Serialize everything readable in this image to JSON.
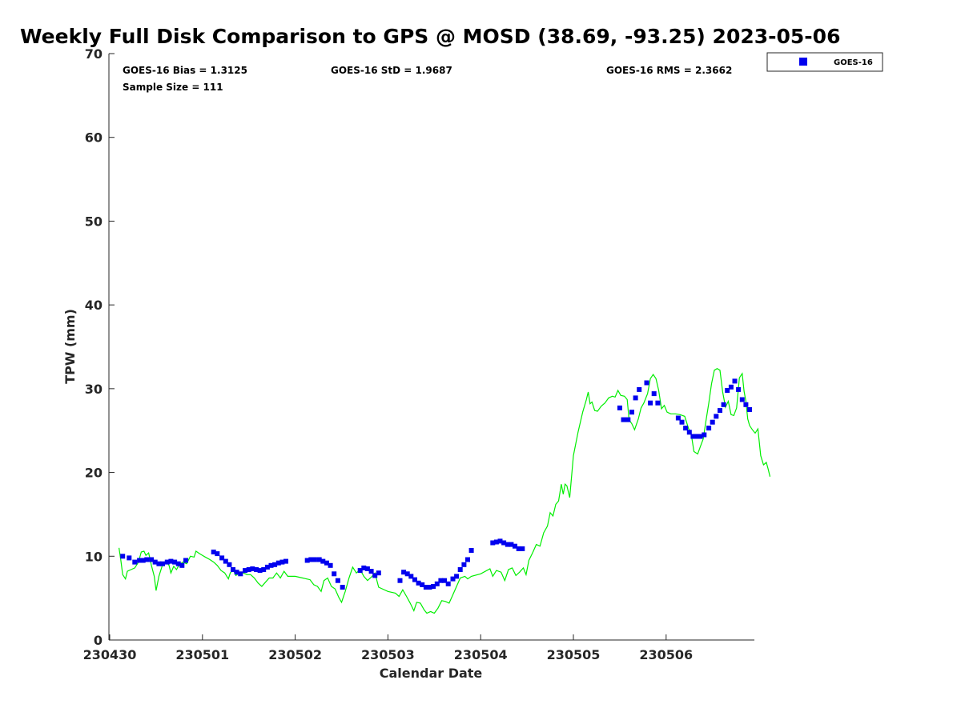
{
  "chart_data": {
    "type": "scatter",
    "title": "Weekly Full Disk Comparison to GPS @ MOSD (38.69, -93.25) 2023-05-06",
    "xlabel": "Calendar Date",
    "ylabel": "TPW (mm)",
    "xlim": [
      0,
      6.95
    ],
    "ylim": [
      0,
      70
    ],
    "x_ticks": [
      0,
      1,
      2,
      3,
      4,
      5,
      6
    ],
    "x_tick_labels": [
      "230430",
      "230501",
      "230502",
      "230503",
      "230504",
      "230505",
      "230506"
    ],
    "y_ticks": [
      0,
      10,
      20,
      30,
      40,
      50,
      60,
      70
    ],
    "y_tick_labels": [
      "0",
      "10",
      "20",
      "30",
      "40",
      "50",
      "60",
      "70"
    ],
    "grid": false,
    "legend_position": "top-right, outside plot",
    "stats": {
      "bias": "GOES-16 Bias = 1.3125",
      "std": "GOES-16 StD = 1.9687",
      "rms": "GOES-16 RMS = 2.3662",
      "sample_size": "Sample Size = 111"
    },
    "series": [
      {
        "name": "GOES-16",
        "kind": "markers",
        "marker": "square",
        "color": "#0000ee",
        "points": [
          [
            0.14,
            10.0
          ],
          [
            0.21,
            9.8
          ],
          [
            0.27,
            9.3
          ],
          [
            0.32,
            9.5
          ],
          [
            0.36,
            9.5
          ],
          [
            0.4,
            9.6
          ],
          [
            0.45,
            9.6
          ],
          [
            0.49,
            9.3
          ],
          [
            0.53,
            9.1
          ],
          [
            0.57,
            9.1
          ],
          [
            0.62,
            9.3
          ],
          [
            0.66,
            9.4
          ],
          [
            0.7,
            9.3
          ],
          [
            0.74,
            9.1
          ],
          [
            0.78,
            8.9
          ],
          [
            0.82,
            9.5
          ],
          [
            1.12,
            10.5
          ],
          [
            1.16,
            10.3
          ],
          [
            1.21,
            9.8
          ],
          [
            1.25,
            9.4
          ],
          [
            1.29,
            9.0
          ],
          [
            1.33,
            8.4
          ],
          [
            1.37,
            8.1
          ],
          [
            1.41,
            7.9
          ],
          [
            1.46,
            8.3
          ],
          [
            1.5,
            8.4
          ],
          [
            1.54,
            8.5
          ],
          [
            1.58,
            8.4
          ],
          [
            1.62,
            8.3
          ],
          [
            1.66,
            8.4
          ],
          [
            1.7,
            8.7
          ],
          [
            1.74,
            8.9
          ],
          [
            1.78,
            9.0
          ],
          [
            1.82,
            9.2
          ],
          [
            1.86,
            9.3
          ],
          [
            1.9,
            9.4
          ],
          [
            2.13,
            9.5
          ],
          [
            2.17,
            9.6
          ],
          [
            2.21,
            9.6
          ],
          [
            2.26,
            9.6
          ],
          [
            2.3,
            9.4
          ],
          [
            2.34,
            9.2
          ],
          [
            2.38,
            8.9
          ],
          [
            2.42,
            7.9
          ],
          [
            2.46,
            7.1
          ],
          [
            2.51,
            6.3
          ],
          [
            2.7,
            8.3
          ],
          [
            2.74,
            8.6
          ],
          [
            2.78,
            8.5
          ],
          [
            2.82,
            8.2
          ],
          [
            2.86,
            7.7
          ],
          [
            2.9,
            8.0
          ],
          [
            3.13,
            7.1
          ],
          [
            3.17,
            8.1
          ],
          [
            3.21,
            7.9
          ],
          [
            3.25,
            7.6
          ],
          [
            3.29,
            7.2
          ],
          [
            3.33,
            6.8
          ],
          [
            3.37,
            6.6
          ],
          [
            3.41,
            6.3
          ],
          [
            3.45,
            6.3
          ],
          [
            3.49,
            6.4
          ],
          [
            3.53,
            6.7
          ],
          [
            3.57,
            7.1
          ],
          [
            3.61,
            7.1
          ],
          [
            3.65,
            6.7
          ],
          [
            3.7,
            7.3
          ],
          [
            3.74,
            7.6
          ],
          [
            3.78,
            8.4
          ],
          [
            3.82,
            9.0
          ],
          [
            3.86,
            9.6
          ],
          [
            3.9,
            10.7
          ],
          [
            4.13,
            11.6
          ],
          [
            4.17,
            11.7
          ],
          [
            4.21,
            11.8
          ],
          [
            4.25,
            11.6
          ],
          [
            4.29,
            11.4
          ],
          [
            4.33,
            11.4
          ],
          [
            4.37,
            11.2
          ],
          [
            4.41,
            10.9
          ],
          [
            4.45,
            10.9
          ],
          [
            5.5,
            27.7
          ],
          [
            5.54,
            26.3
          ],
          [
            5.59,
            26.3
          ],
          [
            5.63,
            27.2
          ],
          [
            5.67,
            28.9
          ],
          [
            5.71,
            29.9
          ],
          [
            5.79,
            30.7
          ],
          [
            5.83,
            28.3
          ],
          [
            5.87,
            29.4
          ],
          [
            5.91,
            28.3
          ],
          [
            6.13,
            26.5
          ],
          [
            6.17,
            26.0
          ],
          [
            6.21,
            25.3
          ],
          [
            6.25,
            24.8
          ],
          [
            6.29,
            24.3
          ],
          [
            6.33,
            24.3
          ],
          [
            6.37,
            24.3
          ],
          [
            6.41,
            24.5
          ],
          [
            6.46,
            25.3
          ],
          [
            6.5,
            26.0
          ],
          [
            6.54,
            26.7
          ],
          [
            6.58,
            27.4
          ],
          [
            6.62,
            28.1
          ],
          [
            6.66,
            29.8
          ],
          [
            6.7,
            30.2
          ],
          [
            6.74,
            30.9
          ],
          [
            6.78,
            29.9
          ],
          [
            6.82,
            28.7
          ],
          [
            6.86,
            28.1
          ],
          [
            6.9,
            27.5
          ]
        ]
      },
      {
        "name": "",
        "kind": "line",
        "color": "#00ee00",
        "points": [
          [
            0.1,
            11.0
          ],
          [
            0.12,
            9.5
          ],
          [
            0.14,
            7.8
          ],
          [
            0.17,
            7.3
          ],
          [
            0.19,
            8.2
          ],
          [
            0.23,
            8.4
          ],
          [
            0.27,
            8.6
          ],
          [
            0.31,
            9.3
          ],
          [
            0.34,
            10.5
          ],
          [
            0.37,
            10.6
          ],
          [
            0.39,
            10.1
          ],
          [
            0.42,
            10.4
          ],
          [
            0.45,
            8.9
          ],
          [
            0.48,
            7.6
          ],
          [
            0.5,
            5.9
          ],
          [
            0.53,
            7.6
          ],
          [
            0.57,
            9.0
          ],
          [
            0.61,
            9.4
          ],
          [
            0.64,
            8.9
          ],
          [
            0.66,
            8.0
          ],
          [
            0.69,
            8.8
          ],
          [
            0.72,
            8.4
          ],
          [
            0.75,
            9.0
          ],
          [
            0.79,
            9.3
          ],
          [
            0.83,
            9.1
          ],
          [
            0.87,
            10.0
          ],
          [
            0.91,
            9.9
          ],
          [
            0.93,
            10.6
          ],
          [
            0.97,
            10.3
          ],
          [
            1.03,
            9.9
          ],
          [
            1.08,
            9.6
          ],
          [
            1.12,
            9.3
          ],
          [
            1.16,
            8.9
          ],
          [
            1.2,
            8.3
          ],
          [
            1.24,
            8.0
          ],
          [
            1.28,
            7.3
          ],
          [
            1.3,
            8.0
          ],
          [
            1.33,
            8.4
          ],
          [
            1.36,
            7.7
          ],
          [
            1.4,
            8.0
          ],
          [
            1.44,
            8.0
          ],
          [
            1.48,
            7.8
          ],
          [
            1.52,
            7.8
          ],
          [
            1.56,
            7.4
          ],
          [
            1.6,
            6.8
          ],
          [
            1.64,
            6.4
          ],
          [
            1.68,
            6.9
          ],
          [
            1.72,
            7.4
          ],
          [
            1.76,
            7.4
          ],
          [
            1.8,
            8.0
          ],
          [
            1.84,
            7.4
          ],
          [
            1.88,
            8.2
          ],
          [
            1.92,
            7.6
          ],
          [
            2.0,
            7.6
          ],
          [
            2.08,
            7.4
          ],
          [
            2.16,
            7.2
          ],
          [
            2.2,
            6.6
          ],
          [
            2.24,
            6.4
          ],
          [
            2.28,
            5.8
          ],
          [
            2.31,
            7.1
          ],
          [
            2.35,
            7.4
          ],
          [
            2.39,
            6.4
          ],
          [
            2.43,
            6.1
          ],
          [
            2.47,
            5.1
          ],
          [
            2.5,
            4.5
          ],
          [
            2.54,
            5.8
          ],
          [
            2.58,
            7.4
          ],
          [
            2.62,
            8.7
          ],
          [
            2.66,
            8.0
          ],
          [
            2.7,
            8.4
          ],
          [
            2.74,
            7.6
          ],
          [
            2.78,
            7.1
          ],
          [
            2.82,
            7.5
          ],
          [
            2.86,
            8.0
          ],
          [
            2.9,
            6.3
          ],
          [
            3.0,
            5.8
          ],
          [
            3.08,
            5.6
          ],
          [
            3.12,
            5.2
          ],
          [
            3.16,
            6.0
          ],
          [
            3.2,
            5.2
          ],
          [
            3.24,
            4.4
          ],
          [
            3.28,
            3.5
          ],
          [
            3.31,
            4.5
          ],
          [
            3.35,
            4.4
          ],
          [
            3.39,
            3.6
          ],
          [
            3.42,
            3.2
          ],
          [
            3.46,
            3.4
          ],
          [
            3.5,
            3.2
          ],
          [
            3.54,
            3.8
          ],
          [
            3.58,
            4.7
          ],
          [
            3.62,
            4.6
          ],
          [
            3.66,
            4.4
          ],
          [
            3.7,
            5.4
          ],
          [
            3.74,
            6.4
          ],
          [
            3.78,
            7.4
          ],
          [
            3.83,
            7.6
          ],
          [
            3.86,
            7.3
          ],
          [
            3.9,
            7.6
          ],
          [
            4.0,
            7.9
          ],
          [
            4.1,
            8.5
          ],
          [
            4.13,
            7.6
          ],
          [
            4.17,
            8.3
          ],
          [
            4.22,
            8.1
          ],
          [
            4.26,
            7.1
          ],
          [
            4.3,
            8.4
          ],
          [
            4.34,
            8.6
          ],
          [
            4.38,
            7.7
          ],
          [
            4.42,
            8.1
          ],
          [
            4.46,
            8.6
          ],
          [
            4.49,
            7.8
          ],
          [
            4.52,
            9.5
          ],
          [
            4.56,
            10.4
          ],
          [
            4.6,
            11.4
          ],
          [
            4.64,
            11.2
          ],
          [
            4.68,
            12.8
          ],
          [
            4.72,
            13.6
          ],
          [
            4.75,
            15.2
          ],
          [
            4.78,
            14.8
          ],
          [
            4.81,
            16.2
          ],
          [
            4.84,
            16.6
          ],
          [
            4.87,
            18.6
          ],
          [
            4.89,
            17.4
          ],
          [
            4.91,
            18.6
          ],
          [
            4.93,
            18.4
          ],
          [
            4.96,
            17.0
          ],
          [
            4.98,
            19.5
          ],
          [
            5.0,
            22.0
          ],
          [
            5.05,
            24.8
          ],
          [
            5.1,
            27.2
          ],
          [
            5.14,
            28.7
          ],
          [
            5.16,
            29.6
          ],
          [
            5.18,
            28.2
          ],
          [
            5.2,
            28.4
          ],
          [
            5.23,
            27.4
          ],
          [
            5.26,
            27.3
          ],
          [
            5.3,
            27.9
          ],
          [
            5.34,
            28.3
          ],
          [
            5.38,
            28.9
          ],
          [
            5.42,
            29.1
          ],
          [
            5.45,
            29.0
          ],
          [
            5.48,
            29.8
          ],
          [
            5.51,
            29.2
          ],
          [
            5.55,
            29.1
          ],
          [
            5.58,
            28.7
          ],
          [
            5.6,
            26.3
          ],
          [
            5.63,
            25.8
          ],
          [
            5.66,
            25.1
          ],
          [
            5.7,
            26.4
          ],
          [
            5.73,
            27.7
          ],
          [
            5.76,
            28.3
          ],
          [
            5.8,
            29.4
          ],
          [
            5.83,
            31.2
          ],
          [
            5.86,
            31.7
          ],
          [
            5.89,
            31.2
          ],
          [
            5.92,
            29.8
          ],
          [
            5.95,
            27.6
          ],
          [
            5.98,
            28.0
          ],
          [
            6.01,
            27.2
          ],
          [
            6.05,
            27.0
          ],
          [
            6.1,
            27.0
          ],
          [
            6.15,
            26.9
          ],
          [
            6.2,
            26.7
          ],
          [
            6.24,
            25.3
          ],
          [
            6.27,
            24.6
          ],
          [
            6.3,
            22.5
          ],
          [
            6.34,
            22.2
          ],
          [
            6.37,
            23.1
          ],
          [
            6.4,
            24.0
          ],
          [
            6.43,
            26.2
          ],
          [
            6.46,
            28.3
          ],
          [
            6.49,
            30.6
          ],
          [
            6.52,
            32.2
          ],
          [
            6.55,
            32.4
          ],
          [
            6.58,
            32.2
          ],
          [
            6.61,
            29.6
          ],
          [
            6.64,
            27.8
          ],
          [
            6.67,
            28.5
          ],
          [
            6.7,
            26.9
          ],
          [
            6.73,
            26.8
          ],
          [
            6.76,
            27.7
          ],
          [
            6.79,
            31.3
          ],
          [
            6.82,
            31.8
          ],
          [
            6.84,
            29.7
          ],
          [
            6.86,
            28.5
          ],
          [
            6.88,
            26.4
          ],
          [
            6.9,
            25.6
          ],
          [
            6.93,
            25.1
          ],
          [
            6.96,
            24.7
          ],
          [
            6.99,
            25.2
          ],
          [
            7.02,
            22.0
          ],
          [
            7.05,
            20.9
          ],
          [
            7.08,
            21.2
          ],
          [
            7.1,
            20.4
          ],
          [
            7.12,
            19.5
          ]
        ]
      }
    ]
  }
}
